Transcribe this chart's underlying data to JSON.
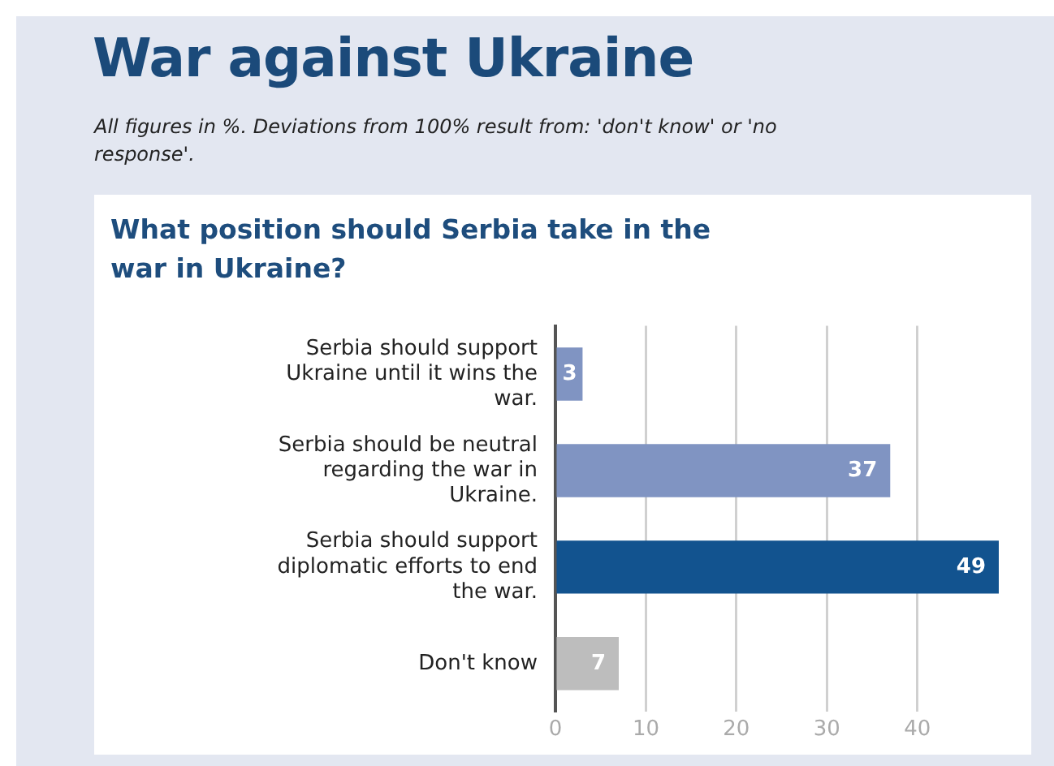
{
  "chart_data": {
    "type": "bar",
    "orientation": "horizontal",
    "title": "War against Ukraine",
    "subtitle": "What position should Serbia take in the war in Ukraine?",
    "annotations": [
      "All figures in %. Deviations from 100% result from: 'don't know' or 'no response'."
    ],
    "categories": [
      "Serbia should support Ukraine until it wins the war.",
      "Serbia should be neutral regarding the war in Ukraine.",
      "Serbia should support diplomatic efforts to end the war.",
      "Don't know"
    ],
    "values": [
      3,
      37,
      49,
      7
    ],
    "colors": [
      "#8094c2",
      "#8094c2",
      "#12538f",
      "#bdbdbd"
    ],
    "xlim": [
      0,
      49
    ],
    "xticks": [
      0,
      10,
      20,
      30,
      40
    ],
    "grid": "x",
    "data_labels": true,
    "legend": false
  }
}
